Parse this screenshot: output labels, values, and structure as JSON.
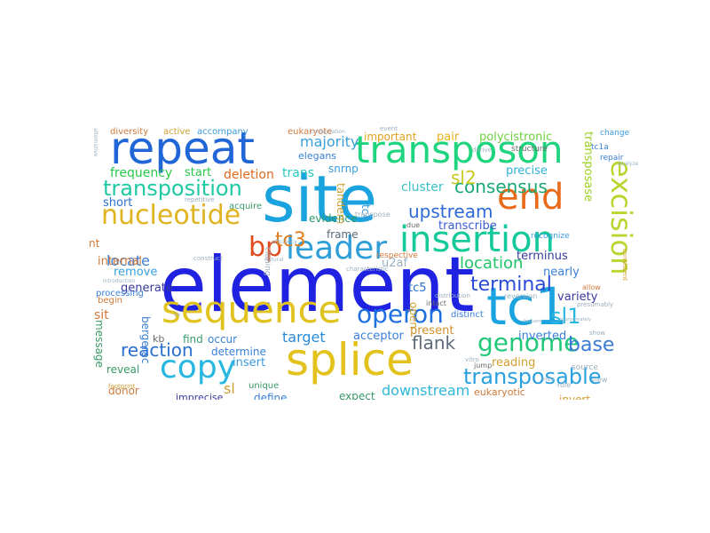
{
  "words": [
    {
      "id": "element",
      "text": "element",
      "color": "#1f22e0"
    },
    {
      "id": "site",
      "text": "site",
      "color": "#1aa3de"
    },
    {
      "id": "repeat",
      "text": "repeat",
      "color": "#2166d6"
    },
    {
      "id": "transposon",
      "text": "transposon",
      "color": "#1fd47e"
    },
    {
      "id": "tc1",
      "text": "tc1",
      "color": "#1aa3de"
    },
    {
      "id": "splice",
      "text": "splice",
      "color": "#e3c21d"
    },
    {
      "id": "sequence",
      "text": "sequence",
      "color": "#e0c31f"
    },
    {
      "id": "insertion",
      "text": "insertion",
      "color": "#16c99a"
    },
    {
      "id": "end",
      "text": "end",
      "color": "#e86a1a"
    },
    {
      "id": "leader",
      "text": "leader",
      "color": "#2e9ed9"
    },
    {
      "id": "nucleotide",
      "text": "nucleotide",
      "color": "#e0b321"
    },
    {
      "id": "copy",
      "text": "copy",
      "color": "#27b7e0"
    },
    {
      "id": "excision",
      "text": "excision",
      "color": "#b7d630"
    },
    {
      "id": "operon",
      "text": "operon",
      "color": "#1e6fe0"
    },
    {
      "id": "genome",
      "text": "genome",
      "color": "#22c97b"
    },
    {
      "id": "transposition",
      "text": "transposition",
      "color": "#1fc9a4"
    },
    {
      "id": "transposable",
      "text": "transposable",
      "color": "#2aa0de"
    },
    {
      "id": "bp",
      "text": "bp",
      "color": "#e24a1d"
    },
    {
      "id": "consensus",
      "text": "consensus",
      "color": "#1aa875"
    },
    {
      "id": "upstream",
      "text": "upstream",
      "color": "#2f69d8"
    },
    {
      "id": "terminal",
      "text": "terminal",
      "color": "#2a4bd6"
    },
    {
      "id": "sl1",
      "text": "sl1",
      "color": "#27b7e0"
    },
    {
      "id": "flank",
      "text": "flank",
      "color": "#5e6a7a"
    },
    {
      "id": "base",
      "text": "base",
      "color": "#3a7bd6"
    },
    {
      "id": "reaction",
      "text": "reaction",
      "color": "#2a6fd0"
    },
    {
      "id": "location",
      "text": "location",
      "color": "#21c46a"
    },
    {
      "id": "tc3",
      "text": "tc3",
      "color": "#e07f1d"
    },
    {
      "id": "sl2",
      "text": "sl2",
      "color": "#c9c920"
    },
    {
      "id": "downstream",
      "text": "downstream",
      "color": "#2eb6d8"
    },
    {
      "id": "target",
      "text": "target",
      "color": "#2a8ad6"
    },
    {
      "id": "majority",
      "text": "majority",
      "color": "#3aa0dc"
    },
    {
      "id": "polycistronic",
      "text": "polycistronic",
      "color": "#6fd040"
    },
    {
      "id": "frequency",
      "text": "frequency",
      "color": "#27c94a"
    },
    {
      "id": "locate",
      "text": "locate",
      "color": "#3a80d8"
    },
    {
      "id": "transposase",
      "text": "transposase",
      "color": "#9ed022"
    },
    {
      "id": "important",
      "text": "important",
      "color": "#e0a21d"
    },
    {
      "id": "deletion",
      "text": "deletion",
      "color": "#e06a1d"
    },
    {
      "id": "cluster",
      "text": "cluster",
      "color": "#3ac0c8"
    },
    {
      "id": "precise",
      "text": "precise",
      "color": "#30b0d8"
    },
    {
      "id": "pair",
      "text": "pair",
      "color": "#e6b11d"
    },
    {
      "id": "short",
      "text": "short",
      "color": "#2a6fd0"
    },
    {
      "id": "tc5",
      "text": "tc5",
      "color": "#2a6fd0"
    },
    {
      "id": "trans",
      "text": "trans",
      "color": "#26c9c0"
    },
    {
      "id": "start",
      "text": "start",
      "color": "#27c94a"
    },
    {
      "id": "transcribe",
      "text": "transcribe",
      "color": "#3a5ad0"
    },
    {
      "id": "evidence",
      "text": "evidence",
      "color": "#2a9a6a"
    },
    {
      "id": "frame",
      "text": "frame",
      "color": "#5a6a7a"
    },
    {
      "id": "terminus",
      "text": "terminus",
      "color": "#3a3aa0"
    },
    {
      "id": "internal",
      "text": "internal",
      "color": "#d07a3a"
    },
    {
      "id": "remove",
      "text": "remove",
      "color": "#3aa0dc"
    },
    {
      "id": "u2af",
      "text": "u2af",
      "color": "#9ab0c0"
    },
    {
      "id": "generate",
      "text": "generate",
      "color": "#3a3a9a"
    },
    {
      "id": "nearly",
      "text": "nearly",
      "color": "#3a80d8"
    },
    {
      "id": "variety",
      "text": "variety",
      "color": "#3a3aa0"
    },
    {
      "id": "present",
      "text": "present",
      "color": "#d0902a"
    },
    {
      "id": "acceptor",
      "text": "acceptor",
      "color": "#3a80d8"
    },
    {
      "id": "inverted",
      "text": "inverted",
      "color": "#3a80d8"
    },
    {
      "id": "sit",
      "text": "sit",
      "color": "#d07a3a"
    },
    {
      "id": "find",
      "text": "find",
      "color": "#3a9a6a"
    },
    {
      "id": "occur",
      "text": "occur",
      "color": "#3a80d8"
    },
    {
      "id": "determine",
      "text": "determine",
      "color": "#3a80d8"
    },
    {
      "id": "insert",
      "text": "insert",
      "color": "#3a9adc"
    },
    {
      "id": "reveal",
      "text": "reveal",
      "color": "#3a9a6a"
    },
    {
      "id": "reading",
      "text": "reading",
      "color": "#d0a030"
    },
    {
      "id": "donor",
      "text": "donor",
      "color": "#d07a3a"
    },
    {
      "id": "define",
      "text": "define",
      "color": "#3a80d8"
    },
    {
      "id": "sl",
      "text": "sl",
      "color": "#d0a030"
    },
    {
      "id": "expect",
      "text": "expect",
      "color": "#3a9a6a"
    },
    {
      "id": "eukaryotic",
      "text": "eukaryotic",
      "color": "#d07a3a"
    },
    {
      "id": "invert",
      "text": "invert",
      "color": "#d0a030"
    },
    {
      "id": "imprecise",
      "text": "imprecise",
      "color": "#3a3aa0"
    },
    {
      "id": "kb",
      "text": "kb",
      "color": "#6a6a6a"
    },
    {
      "id": "nt",
      "text": "nt",
      "color": "#d07a3a"
    },
    {
      "id": "diversity",
      "text": "diversity",
      "color": "#d07a3a"
    },
    {
      "id": "active",
      "text": "active",
      "color": "#d0a030"
    },
    {
      "id": "accompany",
      "text": "accompany",
      "color": "#3a9adc"
    },
    {
      "id": "eukaryote",
      "text": "eukaryote",
      "color": "#d07a3a"
    },
    {
      "id": "processing",
      "text": "processing",
      "color": "#3a80d8"
    },
    {
      "id": "begin",
      "text": "begin",
      "color": "#d07a3a"
    },
    {
      "id": "acquire",
      "text": "acquire",
      "color": "#3a9a6a"
    },
    {
      "id": "elegans",
      "text": "elegans",
      "color": "#3a80d8"
    },
    {
      "id": "snrnp",
      "text": "snrnp",
      "color": "#3a9adc"
    },
    {
      "id": "structure",
      "text": "structure",
      "color": "#6a6a6a"
    },
    {
      "id": "change",
      "text": "change",
      "color": "#3a9adc"
    },
    {
      "id": "tc1a",
      "text": "tc1a",
      "color": "#3a80d8"
    },
    {
      "id": "repair",
      "text": "repair",
      "color": "#3a80d8"
    },
    {
      "id": "recognize",
      "text": "recognize",
      "color": "#3a9adc"
    },
    {
      "id": "intact",
      "text": "intact",
      "color": "#6a6a6a"
    },
    {
      "id": "distinct",
      "text": "distinct",
      "color": "#3a80d8"
    },
    {
      "id": "jump",
      "text": "jump",
      "color": "#6a6a6a"
    },
    {
      "id": "unique",
      "text": "unique",
      "color": "#3a9a6a"
    },
    {
      "id": "potential",
      "text": "potential",
      "color": "#d07a3a"
    },
    {
      "id": "respective",
      "text": "respective",
      "color": "#d07a3a"
    },
    {
      "id": "message",
      "text": "message",
      "color": "#3a9a6a"
    },
    {
      "id": "bergerac",
      "text": "bergerac",
      "color": "#3a80d8"
    },
    {
      "id": "tandem",
      "text": "tandem",
      "color": "#d0a030"
    },
    {
      "id": "tc4",
      "text": "tc4",
      "color": "#3a9adc"
    },
    {
      "id": "cloning",
      "text": "cloning",
      "color": "#9ab0c0"
    },
    {
      "id": "open",
      "text": "open",
      "color": "#d0a030"
    },
    {
      "id": "due",
      "text": "due",
      "color": "#6a6a6a"
    },
    {
      "id": "repetitive",
      "text": "repetitive",
      "color": "#9ab0c0"
    },
    {
      "id": "reversion",
      "text": "reversion",
      "color": "#9ab0c0"
    },
    {
      "id": "transpose",
      "text": "transpose",
      "color": "#9ab0c0"
    },
    {
      "id": "source",
      "text": "source",
      "color": "#9ab0c0"
    },
    {
      "id": "view",
      "text": "view",
      "color": "#9ab0c0"
    },
    {
      "id": "role",
      "text": "role",
      "color": "#9ab0c0"
    },
    {
      "id": "derive",
      "text": "derive",
      "color": "#9ab0c0"
    },
    {
      "id": "allow",
      "text": "allow",
      "color": "#d07a3a"
    },
    {
      "id": "presumably",
      "text": "presumably",
      "color": "#9ab0c0"
    },
    {
      "id": "footprint",
      "text": "footprint",
      "color": "#d0a030"
    },
    {
      "id": "introduction",
      "text": "introduction",
      "color": "#9ab0c0"
    },
    {
      "id": "construct",
      "text": "construct",
      "color": "#9ab0c0"
    },
    {
      "id": "consistent",
      "text": "consistent",
      "color": "#d0a030"
    },
    {
      "id": "efficiency",
      "text": "efficiency",
      "color": "#9ab0c0"
    },
    {
      "id": "natural",
      "text": "natural",
      "color": "#9ab0c0"
    },
    {
      "id": "distribution",
      "text": "distribution",
      "color": "#9ab0c0"
    },
    {
      "id": "vivo",
      "text": "vivo",
      "color": "#9ab0c0"
    },
    {
      "id": "vitro",
      "text": "vitro",
      "color": "#9ab0c0"
    },
    {
      "id": "approximately",
      "text": "approximately",
      "color": "#9ab0c0"
    },
    {
      "id": "frequent",
      "text": "frequent",
      "color": "#9ab0c0"
    },
    {
      "id": "alternative",
      "text": "alternative",
      "color": "#9ab0c0"
    },
    {
      "id": "lie",
      "text": "lie",
      "color": "#9ab0c0"
    },
    {
      "id": "show",
      "text": "show",
      "color": "#9ab0c0"
    },
    {
      "id": "conservation",
      "text": "conservation",
      "color": "#9ab0c0"
    },
    {
      "id": "event",
      "text": "event",
      "color": "#9ab0c0"
    },
    {
      "id": "analyze",
      "text": "analyze",
      "color": "#9ab0c0"
    },
    {
      "id": "characteristic",
      "text": "characteristic",
      "color": "#9ab0c0"
    }
  ]
}
